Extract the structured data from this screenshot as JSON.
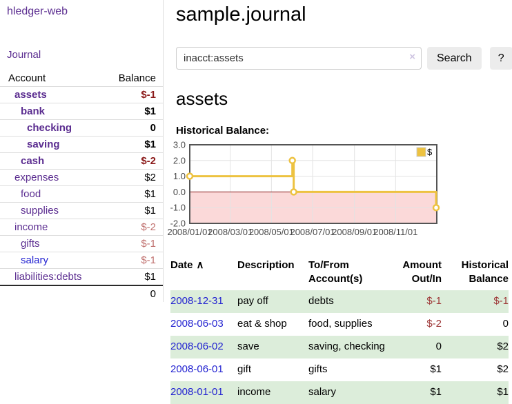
{
  "app": {
    "title": "hledger-web"
  },
  "colors": {
    "link_purple": "#5b2d90",
    "link_blue": "#2323d1",
    "negative_strong": "#8b1a1a",
    "negative_muted": "#c0706e",
    "negative_table": "#9d3636",
    "row_stripe_green": "#dcedda",
    "series_gold": "#edc240",
    "chart_border": "#545454",
    "chart_grid": "#e3e3e3",
    "chart_negative_fill": "#fbd9d9",
    "chart_zero_line": "#8b1a1a"
  },
  "sidebar": {
    "journal_link": "Journal",
    "accounts_header": {
      "account": "Account",
      "balance": "Balance"
    },
    "accounts": [
      {
        "name": "assets",
        "depth": 1,
        "bold": true,
        "balance": "$-1",
        "neg": true,
        "link": "purple"
      },
      {
        "name": "bank",
        "depth": 2,
        "bold": true,
        "balance": "$1",
        "neg": false,
        "link": "purple"
      },
      {
        "name": "checking",
        "depth": 3,
        "bold": true,
        "balance": "0",
        "neg": false,
        "link": "purple"
      },
      {
        "name": "saving",
        "depth": 3,
        "bold": true,
        "balance": "$1",
        "neg": false,
        "link": "purple"
      },
      {
        "name": "cash",
        "depth": 2,
        "bold": true,
        "balance": "$-2",
        "neg": true,
        "link": "purple"
      },
      {
        "name": "expenses",
        "depth": 1,
        "bold": false,
        "balance": "$2",
        "neg": false,
        "link": "purple"
      },
      {
        "name": "food",
        "depth": 2,
        "bold": false,
        "balance": "$1",
        "neg": false,
        "link": "purple"
      },
      {
        "name": "supplies",
        "depth": 2,
        "bold": false,
        "balance": "$1",
        "neg": false,
        "link": "purple"
      },
      {
        "name": "income",
        "depth": 1,
        "bold": false,
        "balance": "$-2",
        "neg": true,
        "link": "purple"
      },
      {
        "name": "gifts",
        "depth": 2,
        "bold": false,
        "balance": "$-1",
        "neg": true,
        "link": "purple"
      },
      {
        "name": "salary",
        "depth": 2,
        "bold": false,
        "balance": "$-1",
        "neg": true,
        "link": "blue"
      },
      {
        "name": "liabilities:debts",
        "depth": 1,
        "bold": false,
        "balance": "$1",
        "neg": false,
        "link": "purple"
      }
    ],
    "total": "0"
  },
  "main": {
    "title": "sample.journal",
    "search": {
      "query": "inacct:assets",
      "clear_icon": "×",
      "button": "Search",
      "help_button": "?"
    },
    "account_heading": "assets",
    "chart_label": "Historical Balance:"
  },
  "chart_data": {
    "type": "line",
    "step": true,
    "title": "Historical Balance:",
    "series": [
      {
        "name": "$",
        "color": "#edc240",
        "points": [
          {
            "date": "2008-01-01",
            "day": 0,
            "value": 1
          },
          {
            "date": "2008-06-01",
            "day": 152,
            "value": 2
          },
          {
            "date": "2008-06-03",
            "day": 154,
            "value": 0
          },
          {
            "date": "2008-12-31",
            "day": 365,
            "value": -1
          }
        ]
      }
    ],
    "x_ticks": [
      {
        "label": "2008/01/01",
        "day": 0
      },
      {
        "label": "2008/03/01",
        "day": 60
      },
      {
        "label": "2008/05/01",
        "day": 121
      },
      {
        "label": "2008/07/01",
        "day": 182
      },
      {
        "label": "2008/09/01",
        "day": 244
      },
      {
        "label": "2008/11/01",
        "day": 305
      }
    ],
    "y_ticks": [
      "3.0",
      "2.0",
      "1.0",
      "0.0",
      "-1.0",
      "-2.0"
    ],
    "ylim": [
      -2,
      3
    ],
    "xlim_days": [
      0,
      366
    ],
    "legend": {
      "label": "$",
      "position": "top-right"
    },
    "grid": true,
    "negative_region_fill": true
  },
  "register": {
    "headers": [
      {
        "l1": "Date",
        "l2": "",
        "align": "left",
        "sort": "∧"
      },
      {
        "l1": "Description",
        "l2": "",
        "align": "left"
      },
      {
        "l1": "To/From",
        "l2": "Account(s)",
        "align": "left"
      },
      {
        "l1": "Amount",
        "l2": "Out/In",
        "align": "right"
      },
      {
        "l1": "Historical",
        "l2": "Balance",
        "align": "right"
      }
    ],
    "rows": [
      {
        "date": "2008-12-31",
        "description": "pay off",
        "accounts": "debts",
        "amount": "$-1",
        "amount_neg": true,
        "balance": "$-1",
        "balance_neg": true
      },
      {
        "date": "2008-06-03",
        "description": "eat & shop",
        "accounts": "food, supplies",
        "amount": "$-2",
        "amount_neg": true,
        "balance": "0",
        "balance_neg": false
      },
      {
        "date": "2008-06-02",
        "description": "save",
        "accounts": "saving, checking",
        "amount": "0",
        "amount_neg": false,
        "balance": "$2",
        "balance_neg": false
      },
      {
        "date": "2008-06-01",
        "description": "gift",
        "accounts": "gifts",
        "amount": "$1",
        "amount_neg": false,
        "balance": "$2",
        "balance_neg": false
      },
      {
        "date": "2008-01-01",
        "description": "income",
        "accounts": "salary",
        "amount": "$1",
        "amount_neg": false,
        "balance": "$1",
        "balance_neg": false
      }
    ]
  }
}
